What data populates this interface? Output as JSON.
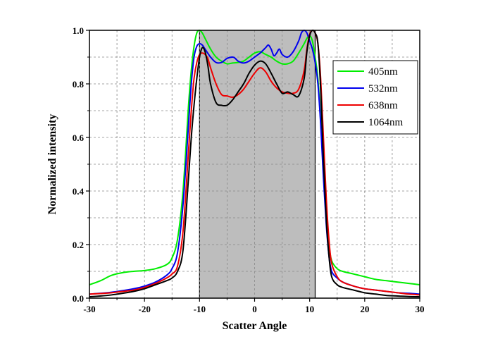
{
  "chart_data": {
    "type": "line",
    "xlabel": "Scatter Angle",
    "ylabel": "Normalized intensity",
    "xlim": [
      -30,
      30
    ],
    "ylim": [
      0.0,
      1.0
    ],
    "x_ticks": [
      -30,
      -20,
      -10,
      0,
      10,
      20,
      30
    ],
    "y_ticks": [
      0.0,
      0.2,
      0.4,
      0.6,
      0.8,
      1.0
    ],
    "x_tick_labels": [
      "-30",
      "-20",
      "-10",
      "0",
      "10",
      "20",
      "30"
    ],
    "y_tick_labels": [
      "0.0",
      "0.2",
      "0.4",
      "0.6",
      "0.8",
      "1.0"
    ],
    "grid": true,
    "legend_position": "top-right",
    "shaded_region": {
      "x_start": -10,
      "x_end": 11,
      "color": "#bdbdbd"
    },
    "series": [
      {
        "name": "405nm",
        "color": "#00ee00",
        "x": [
          -30,
          -28,
          -26,
          -24,
          -22,
          -20,
          -18,
          -16,
          -15,
          -14,
          -13,
          -12,
          -11.5,
          -11,
          -10.5,
          -10,
          -9.5,
          -9,
          -8,
          -7,
          -6,
          -5,
          -4,
          -3,
          -2,
          -1,
          0,
          1,
          2,
          3,
          4,
          5,
          6,
          7,
          8,
          9,
          9.5,
          10,
          10.5,
          11,
          11.5,
          12,
          12.5,
          13,
          13.5,
          14,
          15,
          16,
          18,
          20,
          22,
          24,
          26,
          28,
          30
        ],
        "y": [
          0.05,
          0.065,
          0.085,
          0.095,
          0.1,
          0.103,
          0.11,
          0.125,
          0.15,
          0.22,
          0.4,
          0.72,
          0.85,
          0.94,
          0.99,
          1.0,
          0.99,
          0.97,
          0.93,
          0.9,
          0.885,
          0.875,
          0.878,
          0.88,
          0.885,
          0.9,
          0.915,
          0.92,
          0.91,
          0.9,
          0.885,
          0.875,
          0.875,
          0.885,
          0.915,
          0.95,
          0.97,
          0.98,
          0.96,
          0.9,
          0.82,
          0.66,
          0.48,
          0.32,
          0.2,
          0.14,
          0.11,
          0.1,
          0.09,
          0.08,
          0.07,
          0.065,
          0.06,
          0.055,
          0.05
        ]
      },
      {
        "name": "532nm",
        "color": "#0000ee",
        "x": [
          -30,
          -28,
          -26,
          -24,
          -22,
          -20,
          -18,
          -16,
          -15,
          -14,
          -13,
          -12,
          -11.5,
          -11,
          -10.5,
          -10,
          -9.5,
          -9,
          -8,
          -7,
          -6,
          -5,
          -4,
          -3.5,
          -3,
          -2,
          -1,
          0,
          1,
          2,
          2.5,
          3,
          3.5,
          4,
          4.5,
          5,
          6,
          7,
          8,
          8.5,
          9,
          9.5,
          10,
          10.5,
          11,
          11.5,
          12,
          12.5,
          13,
          13.5,
          14,
          15,
          16,
          18,
          20,
          22,
          24,
          26,
          28,
          30
        ],
        "y": [
          0.015,
          0.018,
          0.022,
          0.028,
          0.035,
          0.045,
          0.06,
          0.085,
          0.11,
          0.17,
          0.35,
          0.65,
          0.8,
          0.9,
          0.94,
          0.95,
          0.945,
          0.93,
          0.9,
          0.88,
          0.88,
          0.895,
          0.9,
          0.895,
          0.885,
          0.878,
          0.885,
          0.9,
          0.915,
          0.935,
          0.945,
          0.93,
          0.905,
          0.915,
          0.93,
          0.91,
          0.9,
          0.92,
          0.96,
          0.99,
          1.0,
          0.99,
          0.96,
          0.93,
          0.88,
          0.8,
          0.65,
          0.45,
          0.28,
          0.16,
          0.1,
          0.075,
          0.06,
          0.045,
          0.035,
          0.03,
          0.025,
          0.02,
          0.018,
          0.015
        ]
      },
      {
        "name": "638nm",
        "color": "#ee0000",
        "x": [
          -30,
          -28,
          -26,
          -24,
          -22,
          -20,
          -18,
          -16,
          -15,
          -14,
          -13,
          -12,
          -11.5,
          -11,
          -10.5,
          -10,
          -9.5,
          -9,
          -8.5,
          -8,
          -7,
          -6,
          -5,
          -4,
          -3,
          -2,
          -1,
          0,
          1,
          2,
          3,
          4,
          5,
          6,
          7,
          8,
          9,
          9.5,
          10,
          10.5,
          11,
          11.5,
          12,
          12.5,
          13,
          13.5,
          14,
          15,
          16,
          18,
          20,
          22,
          24,
          26,
          28,
          30
        ],
        "y": [
          0.015,
          0.017,
          0.02,
          0.025,
          0.03,
          0.04,
          0.055,
          0.075,
          0.09,
          0.12,
          0.25,
          0.55,
          0.7,
          0.82,
          0.88,
          0.91,
          0.915,
          0.91,
          0.895,
          0.86,
          0.8,
          0.76,
          0.755,
          0.75,
          0.76,
          0.78,
          0.81,
          0.84,
          0.86,
          0.845,
          0.81,
          0.785,
          0.77,
          0.765,
          0.765,
          0.78,
          0.85,
          0.93,
          0.985,
          1.0,
          0.99,
          0.95,
          0.82,
          0.6,
          0.38,
          0.22,
          0.13,
          0.08,
          0.06,
          0.045,
          0.035,
          0.03,
          0.025,
          0.02,
          0.015,
          0.012
        ]
      },
      {
        "name": "1064nm",
        "color": "#000000",
        "x": [
          -30,
          -28,
          -26,
          -24,
          -22,
          -20,
          -18,
          -16,
          -15,
          -14,
          -13,
          -12,
          -11.5,
          -11,
          -10.5,
          -10,
          -9.5,
          -9,
          -8.5,
          -8,
          -7,
          -6,
          -5,
          -4,
          -3,
          -2,
          -1,
          0,
          1,
          2,
          3,
          4,
          5,
          6,
          7,
          8,
          9,
          9.5,
          10,
          10.5,
          11,
          11.5,
          12,
          12.5,
          13,
          13.5,
          14,
          15,
          16,
          18,
          20,
          22,
          24,
          26,
          28,
          30
        ],
        "y": [
          0.005,
          0.008,
          0.012,
          0.018,
          0.025,
          0.035,
          0.05,
          0.065,
          0.075,
          0.1,
          0.18,
          0.45,
          0.6,
          0.72,
          0.82,
          0.9,
          0.935,
          0.92,
          0.87,
          0.8,
          0.73,
          0.72,
          0.72,
          0.74,
          0.77,
          0.8,
          0.84,
          0.87,
          0.885,
          0.875,
          0.84,
          0.8,
          0.765,
          0.77,
          0.76,
          0.755,
          0.82,
          0.92,
          0.98,
          1.0,
          0.99,
          0.95,
          0.78,
          0.52,
          0.3,
          0.16,
          0.08,
          0.05,
          0.04,
          0.03,
          0.02,
          0.015,
          0.01,
          0.008,
          0.006,
          0.005
        ]
      }
    ]
  }
}
